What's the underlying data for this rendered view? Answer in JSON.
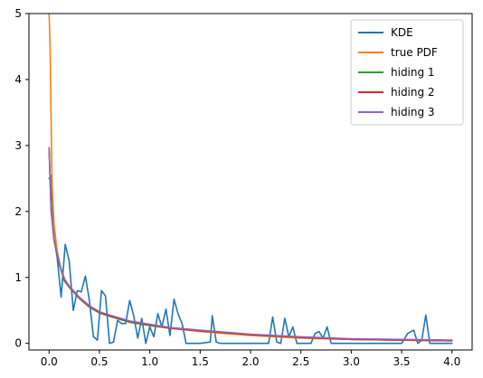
{
  "chart_data": {
    "type": "line",
    "title": "",
    "xlabel": "",
    "ylabel": "",
    "xlim": [
      -0.2,
      4.2
    ],
    "ylim": [
      -0.1,
      5.0
    ],
    "xticks": [
      "0.0",
      "0.5",
      "1.0",
      "1.5",
      "2.0",
      "2.5",
      "3.0",
      "3.5",
      "4.0"
    ],
    "xtick_values": [
      0.0,
      0.5,
      1.0,
      1.5,
      2.0,
      2.5,
      3.0,
      3.5,
      4.0
    ],
    "yticks": [
      "0",
      "1",
      "2",
      "3",
      "4",
      "5"
    ],
    "ytick_values": [
      0,
      1,
      2,
      3,
      4,
      5
    ],
    "grid": false,
    "legend_position": "top-right",
    "series": [
      {
        "name": "KDE",
        "color": "#1f77b4",
        "x": [
          0.0,
          0.02,
          0.05,
          0.08,
          0.12,
          0.16,
          0.2,
          0.24,
          0.28,
          0.32,
          0.36,
          0.4,
          0.44,
          0.48,
          0.52,
          0.56,
          0.6,
          0.64,
          0.68,
          0.72,
          0.76,
          0.8,
          0.84,
          0.88,
          0.92,
          0.96,
          1.0,
          1.04,
          1.08,
          1.12,
          1.16,
          1.2,
          1.24,
          1.28,
          1.32,
          1.36,
          1.4,
          1.5,
          1.6,
          1.62,
          1.66,
          1.7,
          1.8,
          1.9,
          2.0,
          2.1,
          2.18,
          2.22,
          2.26,
          2.3,
          2.34,
          2.38,
          2.42,
          2.46,
          2.5,
          2.6,
          2.64,
          2.68,
          2.72,
          2.76,
          2.8,
          2.9,
          3.0,
          3.2,
          3.4,
          3.5,
          3.56,
          3.62,
          3.66,
          3.7,
          3.74,
          3.78,
          3.9,
          4.0
        ],
        "y": [
          2.5,
          2.55,
          1.6,
          1.3,
          0.7,
          1.5,
          1.25,
          0.5,
          0.8,
          0.78,
          1.02,
          0.65,
          0.1,
          0.05,
          0.8,
          0.72,
          0.0,
          0.02,
          0.35,
          0.3,
          0.3,
          0.65,
          0.42,
          0.08,
          0.38,
          0.0,
          0.25,
          0.1,
          0.45,
          0.25,
          0.52,
          0.12,
          0.67,
          0.45,
          0.3,
          0.0,
          0.0,
          0.0,
          0.02,
          0.42,
          0.02,
          0.0,
          0.0,
          0.0,
          0.0,
          0.0,
          0.0,
          0.4,
          0.02,
          0.0,
          0.38,
          0.1,
          0.25,
          0.0,
          0.0,
          0.0,
          0.15,
          0.18,
          0.08,
          0.25,
          0.0,
          0.0,
          0.0,
          0.0,
          0.0,
          0.0,
          0.15,
          0.2,
          0.0,
          0.05,
          0.43,
          0.0,
          0.0,
          0.0
        ]
      },
      {
        "name": "true PDF",
        "color": "#ff7f0e",
        "x": [
          0.0,
          0.01,
          0.02,
          0.03,
          0.05,
          0.08,
          0.12,
          0.16,
          0.2,
          0.3,
          0.4,
          0.5,
          0.6,
          0.8,
          1.0,
          1.2,
          1.5,
          2.0,
          2.5,
          3.0,
          3.5,
          4.0
        ],
        "y": [
          5.0,
          4.5,
          3.4,
          2.4,
          1.8,
          1.4,
          1.12,
          0.96,
          0.86,
          0.7,
          0.57,
          0.47,
          0.42,
          0.33,
          0.27,
          0.23,
          0.18,
          0.12,
          0.08,
          0.06,
          0.05,
          0.04
        ]
      },
      {
        "name": "hiding 1",
        "color": "#2ca02c",
        "x": [
          0.0,
          0.02,
          0.05,
          0.1,
          0.15,
          0.2,
          0.3,
          0.4,
          0.5,
          0.6,
          0.8,
          1.0,
          1.2,
          1.5,
          2.0,
          2.5,
          3.0,
          3.5,
          4.0
        ],
        "y": [
          2.95,
          2.0,
          1.55,
          1.2,
          0.95,
          0.85,
          0.68,
          0.55,
          0.46,
          0.41,
          0.32,
          0.27,
          0.23,
          0.19,
          0.13,
          0.09,
          0.06,
          0.05,
          0.04
        ]
      },
      {
        "name": "hiding 2",
        "color": "#d62728",
        "x": [
          0.0,
          0.02,
          0.05,
          0.1,
          0.15,
          0.2,
          0.3,
          0.4,
          0.5,
          0.6,
          0.8,
          1.0,
          1.2,
          1.5,
          2.0,
          2.5,
          3.0,
          3.5,
          4.0
        ],
        "y": [
          2.96,
          2.02,
          1.57,
          1.22,
          0.97,
          0.86,
          0.69,
          0.56,
          0.47,
          0.42,
          0.33,
          0.28,
          0.23,
          0.19,
          0.13,
          0.09,
          0.06,
          0.05,
          0.04
        ]
      },
      {
        "name": "hiding 3",
        "color": "#9467bd",
        "x": [
          0.0,
          0.02,
          0.05,
          0.1,
          0.15,
          0.2,
          0.3,
          0.4,
          0.5,
          0.6,
          0.8,
          1.0,
          1.2,
          1.5,
          2.0,
          2.5,
          3.0,
          3.5,
          4.0
        ],
        "y": [
          2.97,
          2.03,
          1.58,
          1.23,
          0.98,
          0.87,
          0.7,
          0.57,
          0.48,
          0.43,
          0.34,
          0.29,
          0.24,
          0.2,
          0.14,
          0.1,
          0.07,
          0.06,
          0.05
        ]
      }
    ]
  }
}
